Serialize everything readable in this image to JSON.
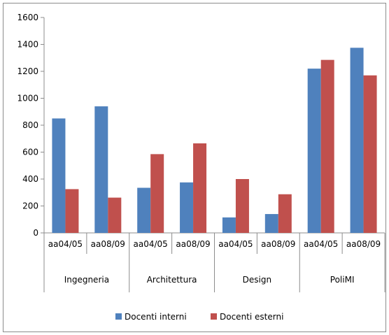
{
  "chart_data": {
    "type": "bar",
    "categories": [
      "aa04/05",
      "aa08/09",
      "aa04/05",
      "aa08/09",
      "aa04/05",
      "aa08/09",
      "aa04/05",
      "aa08/09"
    ],
    "groups": [
      {
        "label": "Ingegneria",
        "span": 2
      },
      {
        "label": "Architettura",
        "span": 2
      },
      {
        "label": "Design",
        "span": 2
      },
      {
        "label": "PoliMI",
        "span": 2
      }
    ],
    "series": [
      {
        "name": "Docenti interni",
        "color": "#4f81bd",
        "values": [
          850,
          940,
          335,
          375,
          115,
          140,
          1220,
          1375
        ]
      },
      {
        "name": "Docenti esterni",
        "color": "#c0504d",
        "values": [
          325,
          262,
          585,
          665,
          400,
          287,
          1285,
          1170
        ]
      }
    ],
    "ylim": [
      0,
      1600
    ],
    "yticks": [
      0,
      200,
      400,
      600,
      800,
      1000,
      1200,
      1400,
      1600
    ],
    "grid": false,
    "legend_position": "bottom",
    "title": "",
    "xlabel": "",
    "ylabel": ""
  }
}
